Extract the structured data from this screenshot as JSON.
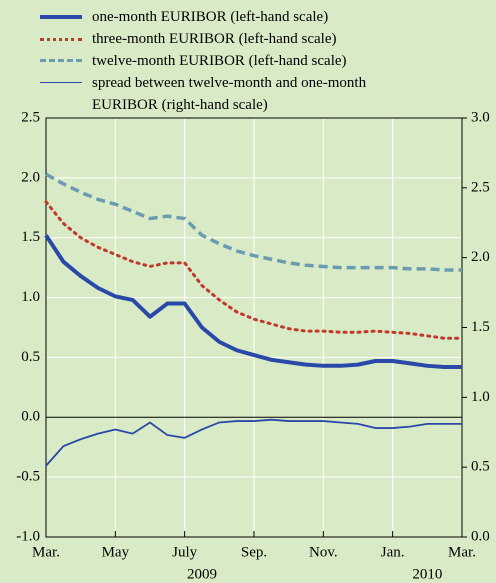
{
  "chart_data": {
    "type": "line",
    "x": [
      0,
      0.5,
      1,
      1.5,
      2,
      2.5,
      3,
      3.5,
      4,
      4.5,
      5,
      5.5,
      6,
      6.5,
      7,
      7.5,
      8,
      8.5,
      9,
      9.5,
      10,
      10.5,
      11,
      11.5,
      12
    ],
    "xlim": [
      0,
      12
    ],
    "xticks": [
      {
        "value": 0,
        "label": "Mar."
      },
      {
        "value": 2,
        "label": "May"
      },
      {
        "value": 4,
        "label": "July"
      },
      {
        "value": 6,
        "label": "Sep."
      },
      {
        "value": 8,
        "label": "Nov."
      },
      {
        "value": 10,
        "label": "Jan."
      },
      {
        "value": 12,
        "label": "Mar."
      }
    ],
    "annotations": [
      "2009",
      "2010"
    ],
    "ylim": [
      -1.0,
      2.5
    ],
    "yticks": [
      {
        "value": 2.5,
        "label": "2.5"
      },
      {
        "value": 2.0,
        "label": "2.0"
      },
      {
        "value": 1.5,
        "label": "1.5"
      },
      {
        "value": 1.0,
        "label": "1.0"
      },
      {
        "value": 0.5,
        "label": "0.5"
      },
      {
        "value": 0.0,
        "label": "0.0"
      },
      {
        "value": -0.5,
        "label": "-0.5"
      },
      {
        "value": -1.0,
        "label": "-1.0"
      }
    ],
    "y2lim": [
      0.0,
      3.0
    ],
    "y2ticks": [
      {
        "value": 3.0,
        "label": "3.0"
      },
      {
        "value": 2.5,
        "label": "2.5"
      },
      {
        "value": 2.0,
        "label": "2.0"
      },
      {
        "value": 1.5,
        "label": "1.5"
      },
      {
        "value": 1.0,
        "label": "1.0"
      },
      {
        "value": 0.5,
        "label": "0.5"
      },
      {
        "value": 0.0,
        "label": "0.0"
      }
    ],
    "grid": true,
    "series": [
      {
        "name": "one-month EURIBOR (left-hand scale)",
        "color": "#2a48a8",
        "style": "solid",
        "width": 4,
        "values": [
          1.52,
          1.3,
          1.18,
          1.08,
          1.01,
          0.98,
          0.84,
          0.95,
          0.95,
          0.75,
          0.63,
          0.56,
          0.52,
          0.48,
          0.46,
          0.44,
          0.43,
          0.43,
          0.44,
          0.47,
          0.47,
          0.45,
          0.43,
          0.42,
          0.42
        ]
      },
      {
        "name": "three-month EURIBOR (left-hand scale)",
        "color": "#c0392b",
        "style": "dotted",
        "width": 3,
        "values": [
          1.8,
          1.62,
          1.5,
          1.42,
          1.36,
          1.3,
          1.26,
          1.29,
          1.29,
          1.1,
          0.98,
          0.88,
          0.82,
          0.78,
          0.74,
          0.72,
          0.72,
          0.71,
          0.71,
          0.72,
          0.71,
          0.7,
          0.68,
          0.66,
          0.66
        ]
      },
      {
        "name": "twelve-month EURIBOR (left-hand scale)",
        "color": "#6b9bb0",
        "style": "dashed",
        "width": 3.5,
        "values": [
          2.03,
          1.95,
          1.88,
          1.82,
          1.78,
          1.72,
          1.66,
          1.68,
          1.66,
          1.52,
          1.45,
          1.39,
          1.35,
          1.32,
          1.29,
          1.27,
          1.26,
          1.25,
          1.25,
          1.25,
          1.25,
          1.24,
          1.24,
          1.23,
          1.23
        ]
      },
      {
        "name": "spread between twelve-month and one-month EURIBOR (right-hand scale)",
        "color": "#2a48a8",
        "style": "solid",
        "width": 1.8,
        "axis": "y2",
        "values": [
          0.51,
          0.65,
          0.7,
          0.74,
          0.77,
          0.74,
          0.82,
          0.73,
          0.71,
          0.77,
          0.82,
          0.83,
          0.83,
          0.84,
          0.83,
          0.83,
          0.83,
          0.82,
          0.81,
          0.78,
          0.78,
          0.79,
          0.81,
          0.81,
          0.81
        ]
      }
    ]
  }
}
